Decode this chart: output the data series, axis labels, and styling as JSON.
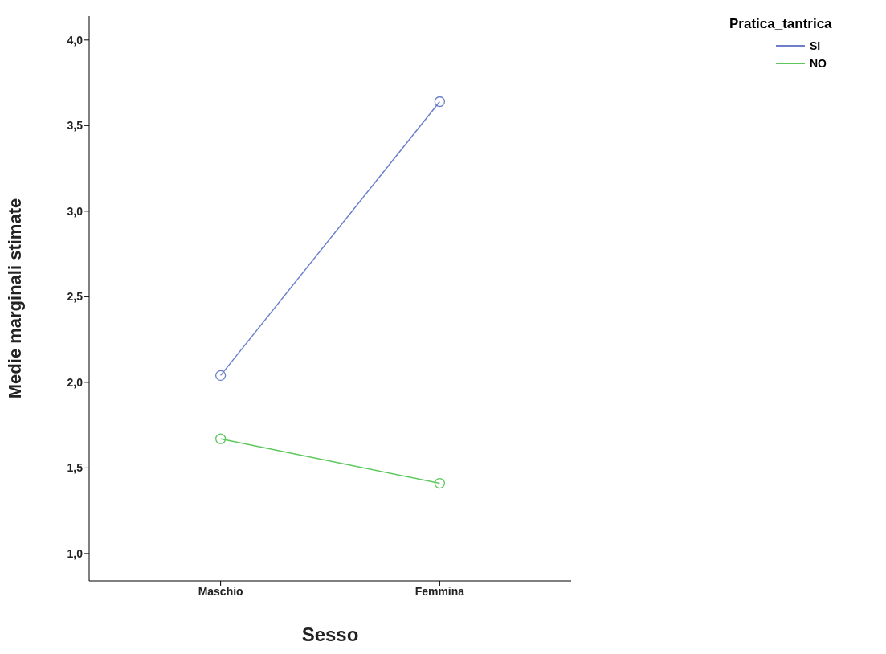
{
  "chart_data": {
    "type": "line",
    "xlabel": "Sesso",
    "ylabel": "Medie marginali stimate",
    "legend_title": "Pratica_tantrica",
    "categories": [
      "Maschio",
      "Femmina"
    ],
    "series": [
      {
        "name": "SI",
        "color": "#6b7fcb",
        "values": [
          2.04,
          3.64
        ]
      },
      {
        "name": "NO",
        "color": "#5dc75d",
        "values": [
          1.67,
          1.41
        ]
      }
    ],
    "ylim": [
      0.84,
      4.14
    ],
    "yticks": [
      {
        "value": 1,
        "label": "1,0"
      },
      {
        "value": 1.5,
        "label": "1,5"
      },
      {
        "value": 2,
        "label": "2,0"
      },
      {
        "value": 2.5,
        "label": "2,5"
      },
      {
        "value": 3,
        "label": "3,0"
      },
      {
        "value": 3.5,
        "label": "3,5"
      },
      {
        "value": 4,
        "label": "4,0"
      }
    ],
    "grid": false,
    "legend": "top right",
    "marker": "circle",
    "line_style": "solid"
  }
}
